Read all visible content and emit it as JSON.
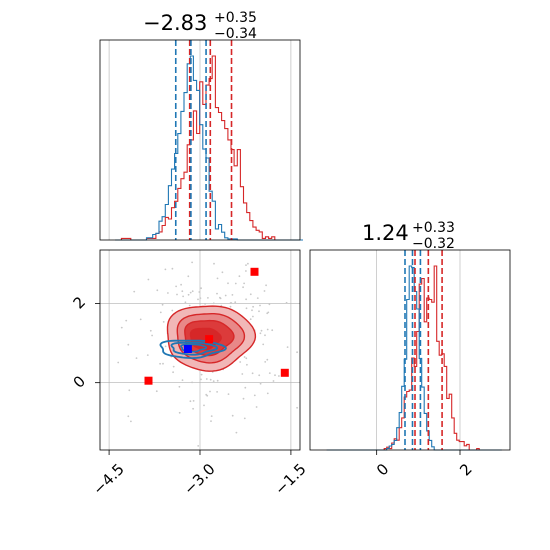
{
  "chart_data": {
    "type": "corner",
    "params": [
      {
        "median": -2.83,
        "plus": 0.35,
        "minus": 0.34,
        "title_value": "−2.83",
        "title_plus": "+0.35",
        "title_minus": "−0.34",
        "xlim": [
          -4.65,
          -1.35
        ]
      },
      {
        "median": 1.24,
        "plus": 0.33,
        "minus": 0.32,
        "title_value": "1.24",
        "title_plus": "+0.33",
        "title_minus": "−0.32",
        "xlim": [
          -1.6,
          3.2
        ]
      }
    ],
    "x_ticks": [
      {
        "value": -4.5,
        "label": "−4.5"
      },
      {
        "value": -3.0,
        "label": "−3.0"
      },
      {
        "value": -1.5,
        "label": "−1.5"
      }
    ],
    "y_ticks": [
      {
        "value": 0,
        "label": "0"
      },
      {
        "value": 2,
        "label": "2"
      }
    ],
    "y2_ticks": [
      {
        "value": 0,
        "label": "0"
      },
      {
        "value": 2,
        "label": "2"
      }
    ],
    "joint_ylim": [
      -1.7,
      3.35
    ],
    "series": [
      {
        "color": "#d62728",
        "quantiles_p1": [
          -3.17,
          -2.83,
          -2.48
        ],
        "quantiles_p2": [
          0.92,
          1.24,
          1.57
        ]
      },
      {
        "color": "#1f77b4",
        "quantiles_p1": [
          -3.4,
          -3.15,
          -2.9
        ],
        "quantiles_p2": [
          0.68,
          0.86,
          1.05
        ]
      }
    ],
    "points": [
      {
        "x": -2.1,
        "y": 2.8,
        "color": "#ff0000"
      },
      {
        "x": -3.85,
        "y": 0.05,
        "color": "#ff0000"
      },
      {
        "x": -1.6,
        "y": 0.25,
        "color": "#ff0000"
      },
      {
        "x": -2.85,
        "y": 1.1,
        "color": "#ff0000"
      },
      {
        "x": -3.2,
        "y": 0.85,
        "color": "#0000ff"
      }
    ],
    "grid": true
  }
}
